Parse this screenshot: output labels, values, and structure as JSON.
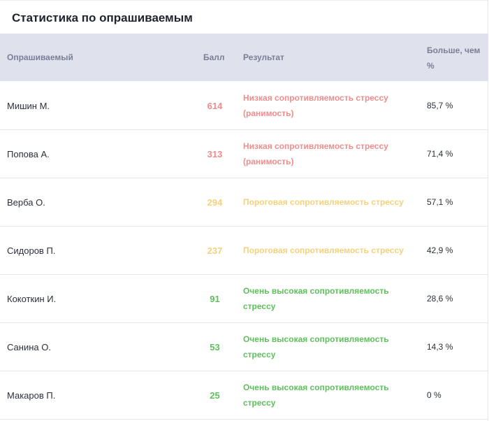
{
  "title": "Статистика по опрашиваемым",
  "columns": {
    "name": "Опрашиваемый",
    "score": "Балл",
    "result": "Результат",
    "more_than": "Больше, чем %"
  },
  "colors": {
    "low": "#ef8c8c",
    "threshold": "#f5d27a",
    "high": "#5fbf5c",
    "header_bg": "#dfe1ed"
  },
  "rows": [
    {
      "name": "Мишин М.",
      "score": "614",
      "result": "Низкая сопротивляемость стрессу (ранимость)",
      "level": "low",
      "more_than": "85,7 %"
    },
    {
      "name": "Попова А.",
      "score": "313",
      "result": "Низкая сопротивляемость стрессу (ранимость)",
      "level": "low",
      "more_than": "71,4 %"
    },
    {
      "name": "Верба О.",
      "score": "294",
      "result": "Пороговая сопротивляемость стрессу",
      "level": "threshold",
      "more_than": "57,1 %"
    },
    {
      "name": "Сидоров П.",
      "score": "237",
      "result": "Пороговая сопротивляемость стрессу",
      "level": "threshold",
      "more_than": "42,9 %"
    },
    {
      "name": "Кокоткин И.",
      "score": "91",
      "result": "Очень высокая сопротивляемость стрессу",
      "level": "high",
      "more_than": "28,6 %"
    },
    {
      "name": "Санина О.",
      "score": "53",
      "result": "Очень высокая сопротивляемость стрессу",
      "level": "high",
      "more_than": "14,3 %"
    },
    {
      "name": "Макаров П.",
      "score": "25",
      "result": "Очень высокая сопротивляемость стрессу",
      "level": "high",
      "more_than": "0 %"
    }
  ]
}
